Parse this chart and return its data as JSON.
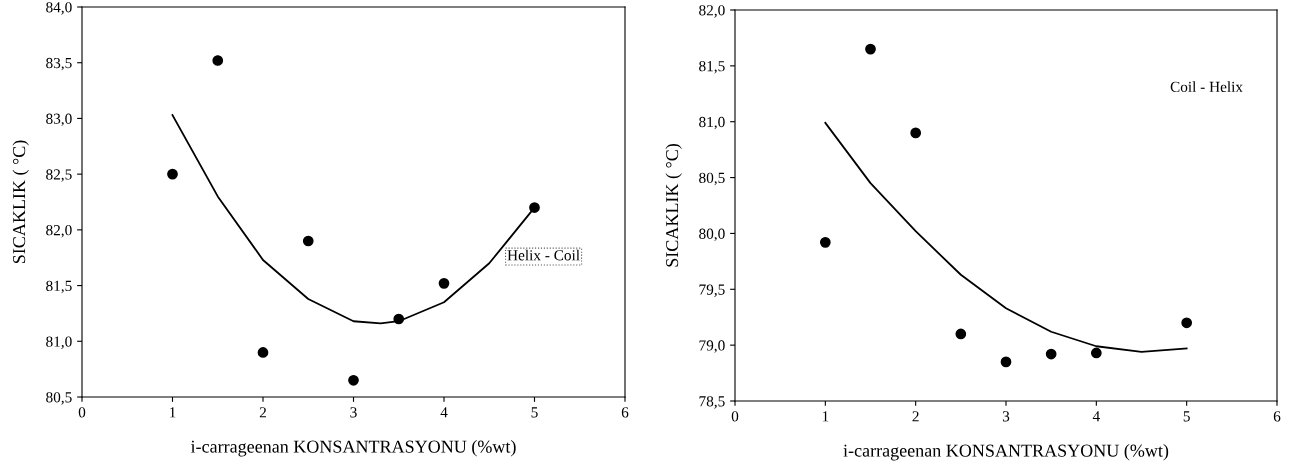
{
  "chart_data": [
    {
      "type": "scatter",
      "xlabel": "i-carrageenan KONSANTRASYONU (%wt)",
      "ylabel": "SICAKLIK ( °C)",
      "annotations": [
        "Helix - Coil"
      ],
      "marker": "circle",
      "grid": false,
      "legend": false,
      "xlim": [
        0,
        6
      ],
      "xticks": [
        0,
        1,
        2,
        3,
        4,
        5,
        6
      ],
      "ylim": [
        80.5,
        84.0
      ],
      "yticks": [
        {
          "value": 80.5,
          "label": "80,5"
        },
        {
          "value": 81.0,
          "label": "81,0"
        },
        {
          "value": 81.5,
          "label": "81,5"
        },
        {
          "value": 82.0,
          "label": "82,0"
        },
        {
          "value": 82.5,
          "label": "82,5"
        },
        {
          "value": 83.0,
          "label": "83,0"
        },
        {
          "value": 83.5,
          "label": "83,5"
        },
        {
          "value": 84.0,
          "label": "84,0"
        }
      ],
      "series": [
        {
          "color": "#000000",
          "x": [
            1,
            1.5,
            2,
            2.5,
            3,
            3.5,
            4,
            5
          ],
          "values": [
            82.5,
            83.52,
            80.9,
            81.9,
            80.65,
            81.2,
            81.52,
            82.2
          ]
        },
        {
          "type": "line",
          "color": "#000000",
          "marker": "none",
          "x": [
            1,
            1.5,
            2,
            2.5,
            3,
            3.3,
            3.5,
            4,
            4.5,
            5
          ],
          "values": [
            83.03,
            82.3,
            81.73,
            81.38,
            81.18,
            81.16,
            81.18,
            81.35,
            81.7,
            82.2
          ]
        }
      ]
    },
    {
      "type": "scatter",
      "xlabel": "i-carrageenan KONSANTRASYONU (%wt)",
      "ylabel": "SICAKLIK ( °C)",
      "annotations": [
        "Coil - Helix"
      ],
      "marker": "circle",
      "grid": false,
      "legend": false,
      "xlim": [
        0,
        6
      ],
      "xticks": [
        0,
        1,
        2,
        3,
        4,
        5,
        6
      ],
      "ylim": [
        78.5,
        82.0
      ],
      "yticks": [
        {
          "value": 78.5,
          "label": "78,5"
        },
        {
          "value": 79.0,
          "label": "79,0"
        },
        {
          "value": 79.5,
          "label": "79,5"
        },
        {
          "value": 80.0,
          "label": "80,0"
        },
        {
          "value": 80.5,
          "label": "80,5"
        },
        {
          "value": 81.0,
          "label": "81,0"
        },
        {
          "value": 81.5,
          "label": "81,5"
        },
        {
          "value": 82.0,
          "label": "82,0"
        }
      ],
      "series": [
        {
          "color": "#000000",
          "x": [
            1,
            1.5,
            2,
            2.5,
            3,
            3.5,
            4,
            5
          ],
          "values": [
            79.92,
            81.65,
            80.9,
            79.1,
            78.85,
            78.92,
            78.93,
            79.2
          ]
        },
        {
          "type": "line",
          "color": "#000000",
          "marker": "none",
          "x": [
            1,
            1.5,
            2,
            2.5,
            3,
            3.5,
            4,
            4.5,
            5
          ],
          "values": [
            80.99,
            80.45,
            80.02,
            79.63,
            79.33,
            79.12,
            78.99,
            78.94,
            78.97
          ]
        }
      ]
    }
  ]
}
